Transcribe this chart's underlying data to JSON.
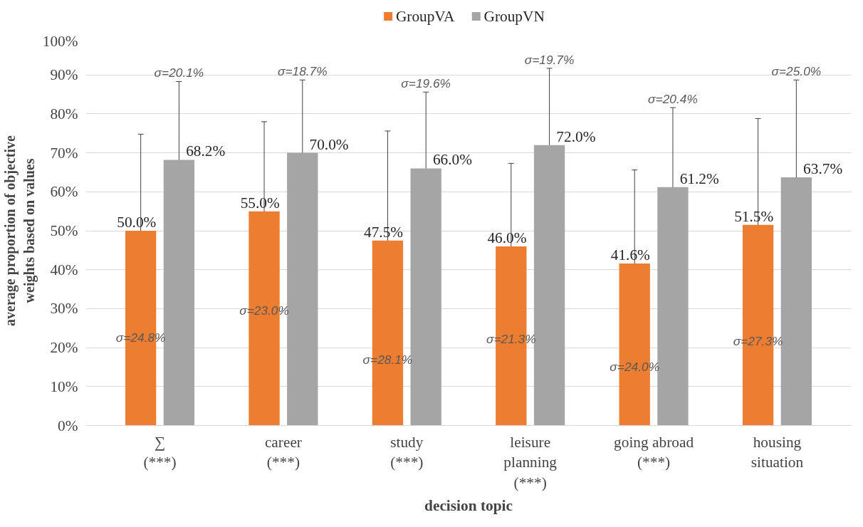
{
  "chart_data": {
    "type": "bar",
    "xlabel": "decision topic",
    "ylabel": "average proportion of objective weights based on values",
    "categories": [
      "∑\n(***)",
      "career\n(***)",
      "study\n(***)",
      "leisure\nplanning\n(***)",
      "going abroad\n(***)",
      "housing\nsituation"
    ],
    "series": [
      {
        "name": "GroupVA",
        "color": "#ed7d31",
        "values": [
          50.0,
          55.0,
          47.5,
          46.0,
          41.6,
          51.5
        ],
        "errors": [
          24.8,
          23.0,
          28.1,
          21.3,
          24.0,
          27.3
        ],
        "value_labels": [
          "50.0%",
          "55.0%",
          "47.5%",
          "46.0%",
          "41.6%",
          "51.5%"
        ]
      },
      {
        "name": "GroupVN",
        "color": "#a5a5a5",
        "values": [
          68.2,
          70.0,
          66.0,
          72.0,
          61.2,
          63.7
        ],
        "errors": [
          20.1,
          18.7,
          19.6,
          19.7,
          20.4,
          25.0
        ],
        "value_labels": [
          "68.2%",
          "70.0%",
          "66.0%",
          "72.0%",
          "61.2%",
          "63.7%"
        ]
      }
    ],
    "ylim": [
      0,
      100
    ],
    "yticks": [
      {
        "value": 0,
        "label": "0%"
      },
      {
        "value": 10,
        "label": "10%"
      },
      {
        "value": 20,
        "label": "20%"
      },
      {
        "value": 30,
        "label": "30%"
      },
      {
        "value": 40,
        "label": "40%"
      },
      {
        "value": 50,
        "label": "50%"
      },
      {
        "value": 60,
        "label": "60%"
      },
      {
        "value": 70,
        "label": "70%"
      },
      {
        "value": 80,
        "label": "80%"
      },
      {
        "value": 90,
        "label": "90%"
      },
      {
        "value": 100,
        "label": "100%"
      }
    ],
    "grid": "y",
    "legend": "top",
    "annotations": [
      "σ=24.8%",
      "σ=20.1%",
      "σ=23.0%",
      "σ=18.7%",
      "σ=28.1%",
      "σ=19.6%",
      "σ=21.3%",
      "σ=19.7%",
      "σ=24.0%",
      "σ=20.4%",
      "σ=27.3%",
      "σ=25.0%"
    ]
  }
}
